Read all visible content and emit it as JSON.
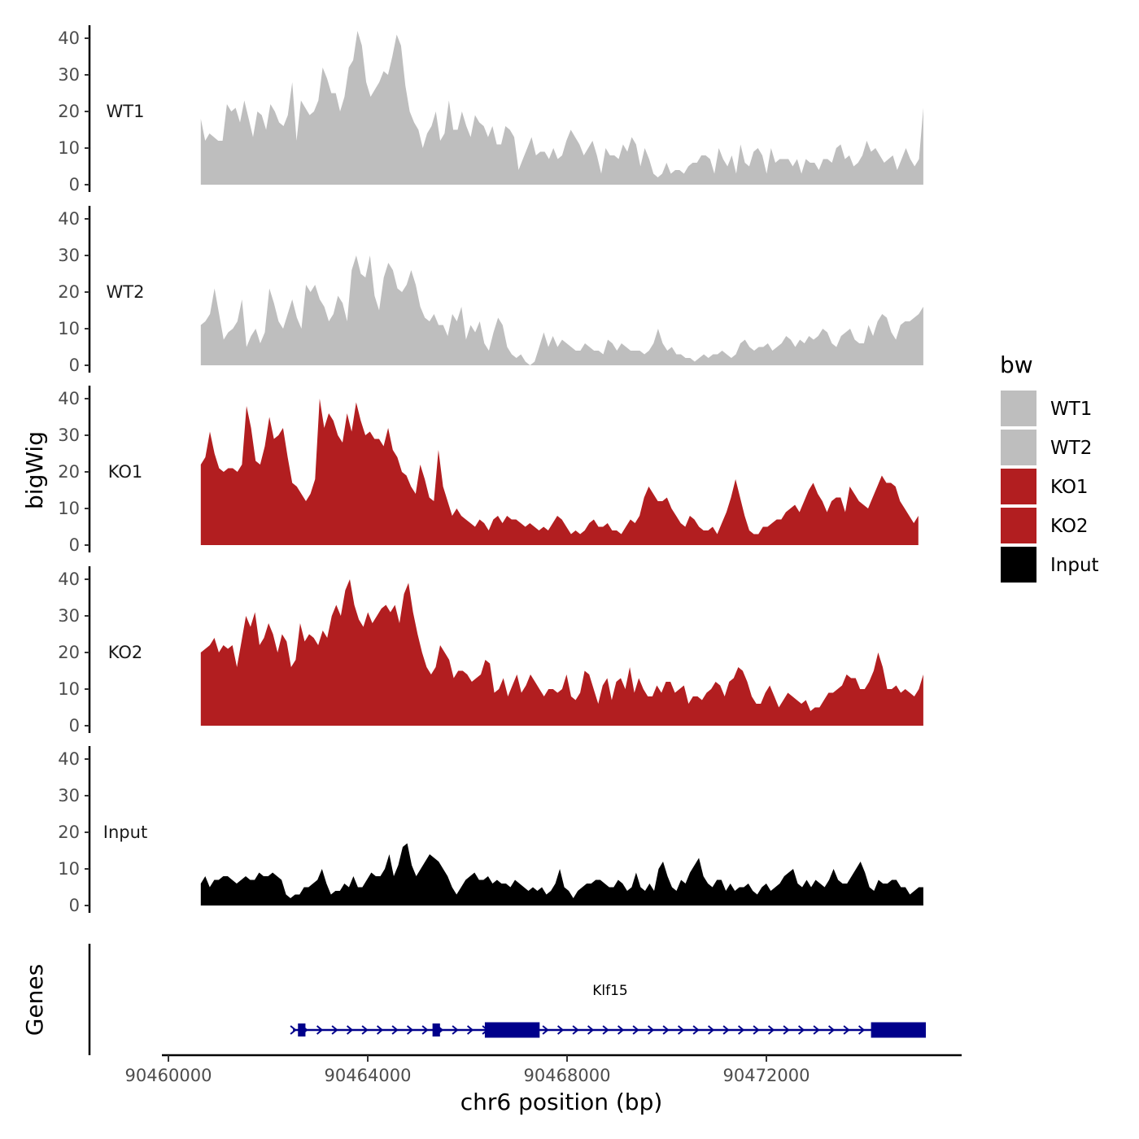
{
  "chart_data": {
    "type": "area",
    "layout": "stacked-facets",
    "ylabel": "bigWig",
    "xlabel": "chr6 position (bp)",
    "ylim": [
      0,
      40
    ],
    "y_ticks": [
      "0",
      "10",
      "20",
      "30",
      "40"
    ],
    "x_range": [
      90459950,
      90475850
    ],
    "x_ticks": [
      90460000,
      90464000,
      90468000,
      90472000
    ],
    "x_tick_labels": [
      "90460000",
      "90464000",
      "90468000",
      "90472000"
    ],
    "colors": {
      "WT": "#bebebe",
      "KO": "#b21e20",
      "Input": "#000000",
      "gene": "#00008b",
      "axis": "#000000"
    },
    "series": [
      {
        "name": "WT1",
        "color": "#bebebe",
        "x_start": 90460650,
        "x_end": 90475150,
        "values": [
          18,
          12,
          14,
          13,
          12,
          12,
          22,
          20,
          21,
          17,
          23,
          18,
          13,
          20,
          19,
          15,
          22,
          20,
          17,
          16,
          19,
          28,
          12,
          23,
          21,
          19,
          20,
          23,
          32,
          29,
          25,
          25,
          20,
          24,
          32,
          34,
          42,
          38,
          28,
          24,
          26,
          28,
          31,
          30,
          35,
          41,
          38,
          27,
          20,
          17,
          15,
          10,
          14,
          16,
          20,
          12,
          14,
          23,
          15,
          15,
          20,
          16,
          13,
          19,
          17,
          16,
          13,
          16,
          11,
          11,
          16,
          15,
          13,
          4,
          7,
          10,
          13,
          8,
          9,
          9,
          7,
          10,
          7,
          8,
          12,
          15,
          13,
          11,
          8,
          10,
          12,
          8,
          3,
          10,
          8,
          8,
          7,
          11,
          9,
          13,
          11,
          5,
          10,
          7,
          3,
          2,
          3,
          6,
          3,
          4,
          4,
          3,
          5,
          6,
          6,
          8,
          8,
          7,
          3,
          10,
          7,
          5,
          8,
          3,
          11,
          6,
          5,
          9,
          10,
          8,
          3,
          10,
          6,
          7,
          7,
          7,
          5,
          7,
          3,
          7,
          6,
          6,
          4,
          7,
          7,
          6,
          10,
          11,
          7,
          8,
          5,
          6,
          8,
          12,
          9,
          10,
          8,
          6,
          7,
          8,
          4,
          7,
          10,
          7,
          5,
          7,
          21
        ]
      },
      {
        "name": "WT2",
        "color": "#bebebe",
        "x_start": 90460650,
        "x_end": 90475150,
        "values": [
          11,
          12,
          14,
          21,
          14,
          7,
          9,
          10,
          12,
          18,
          5,
          8,
          10,
          6,
          9,
          21,
          17,
          12,
          10,
          14,
          18,
          13,
          10,
          22,
          20,
          22,
          18,
          16,
          12,
          14,
          19,
          17,
          12,
          26,
          30,
          25,
          24,
          30,
          19,
          15,
          24,
          28,
          26,
          21,
          20,
          22,
          26,
          22,
          16,
          13,
          12,
          14,
          11,
          11,
          8,
          14,
          12,
          16,
          7,
          11,
          9,
          12,
          6,
          4,
          9,
          13,
          11,
          5,
          3,
          2,
          3,
          1,
          0,
          1,
          5,
          9,
          5,
          8,
          5,
          7,
          6,
          5,
          4,
          4,
          6,
          5,
          4,
          4,
          3,
          7,
          6,
          4,
          6,
          5,
          4,
          4,
          4,
          3,
          4,
          6,
          10,
          6,
          4,
          5,
          3,
          3,
          2,
          2,
          1,
          2,
          3,
          2,
          3,
          3,
          4,
          3,
          2,
          3,
          6,
          7,
          5,
          4,
          5,
          5,
          6,
          4,
          5,
          6,
          8,
          7,
          5,
          7,
          6,
          8,
          7,
          8,
          10,
          9,
          6,
          5,
          8,
          9,
          10,
          7,
          6,
          6,
          11,
          8,
          12,
          14,
          13,
          9,
          7,
          11,
          12,
          12,
          13,
          14,
          16
        ]
      },
      {
        "name": "KO1",
        "color": "#b21e20",
        "x_start": 90460650,
        "x_end": 90475050,
        "values": [
          22,
          24,
          31,
          25,
          21,
          20,
          21,
          21,
          20,
          22,
          38,
          32,
          23,
          22,
          27,
          35,
          29,
          30,
          32,
          24,
          17,
          16,
          14,
          12,
          14,
          18,
          40,
          32,
          36,
          34,
          30,
          28,
          36,
          31,
          39,
          34,
          30,
          31,
          29,
          29,
          27,
          32,
          26,
          24,
          20,
          19,
          16,
          14,
          22,
          18,
          13,
          12,
          26,
          16,
          12,
          8,
          10,
          8,
          7,
          6,
          5,
          7,
          6,
          4,
          7,
          8,
          6,
          8,
          7,
          7,
          6,
          5,
          6,
          5,
          4,
          5,
          4,
          6,
          8,
          7,
          5,
          3,
          4,
          3,
          4,
          6,
          7,
          5,
          5,
          6,
          4,
          4,
          3,
          5,
          7,
          6,
          8,
          13,
          16,
          14,
          12,
          12,
          13,
          10,
          8,
          6,
          5,
          8,
          7,
          5,
          4,
          4,
          5,
          3,
          6,
          9,
          13,
          18,
          13,
          8,
          4,
          3,
          3,
          5,
          5,
          6,
          7,
          7,
          9,
          10,
          11,
          9,
          12,
          15,
          17,
          14,
          12,
          9,
          12,
          13,
          13,
          9,
          16,
          14,
          12,
          11,
          10,
          13,
          16,
          19,
          17,
          17,
          16,
          12,
          10,
          8,
          6,
          8
        ]
      },
      {
        "name": "KO2",
        "color": "#b21e20",
        "x_start": 90460650,
        "x_end": 90475150,
        "values": [
          20,
          21,
          22,
          24,
          20,
          22,
          21,
          22,
          16,
          23,
          30,
          27,
          31,
          22,
          24,
          28,
          25,
          20,
          25,
          23,
          16,
          18,
          28,
          23,
          25,
          24,
          22,
          26,
          24,
          30,
          33,
          30,
          37,
          40,
          33,
          29,
          27,
          31,
          28,
          30,
          32,
          33,
          31,
          33,
          28,
          36,
          39,
          31,
          25,
          20,
          16,
          14,
          16,
          22,
          20,
          18,
          13,
          15,
          15,
          14,
          12,
          13,
          14,
          18,
          17,
          9,
          10,
          13,
          8,
          11,
          14,
          9,
          11,
          14,
          12,
          10,
          8,
          10,
          10,
          9,
          10,
          14,
          8,
          7,
          9,
          15,
          14,
          10,
          6,
          11,
          13,
          7,
          12,
          13,
          10,
          16,
          9,
          13,
          10,
          8,
          8,
          11,
          9,
          12,
          12,
          9,
          10,
          11,
          6,
          8,
          8,
          7,
          9,
          10,
          12,
          11,
          8,
          12,
          13,
          16,
          15,
          12,
          8,
          6,
          6,
          9,
          11,
          8,
          5,
          7,
          9,
          8,
          7,
          6,
          7,
          4,
          5,
          5,
          7,
          9,
          9,
          10,
          11,
          14,
          13,
          13,
          10,
          10,
          12,
          15,
          20,
          16,
          10,
          10,
          11,
          9,
          10,
          9,
          8,
          10,
          14
        ]
      },
      {
        "name": "Input",
        "color": "#000000",
        "x_start": 90460650,
        "x_end": 90475150,
        "values": [
          6,
          8,
          5,
          7,
          7,
          8,
          8,
          7,
          6,
          7,
          8,
          7,
          7,
          9,
          8,
          8,
          9,
          8,
          7,
          3,
          2,
          3,
          3,
          5,
          5,
          6,
          7,
          10,
          6,
          3,
          4,
          4,
          6,
          5,
          8,
          5,
          5,
          7,
          9,
          8,
          8,
          10,
          14,
          8,
          11,
          16,
          17,
          11,
          8,
          10,
          12,
          14,
          13,
          12,
          10,
          8,
          5,
          3,
          5,
          7,
          8,
          9,
          7,
          7,
          8,
          6,
          7,
          6,
          6,
          5,
          7,
          6,
          5,
          4,
          5,
          4,
          5,
          3,
          4,
          6,
          10,
          5,
          4,
          2,
          4,
          5,
          6,
          6,
          7,
          7,
          6,
          5,
          5,
          7,
          6,
          4,
          5,
          9,
          5,
          4,
          6,
          4,
          10,
          12,
          8,
          5,
          4,
          7,
          6,
          9,
          11,
          13,
          8,
          6,
          5,
          7,
          7,
          4,
          6,
          4,
          5,
          5,
          6,
          4,
          3,
          5,
          6,
          4,
          5,
          6,
          8,
          9,
          10,
          6,
          5,
          7,
          5,
          7,
          6,
          5,
          7,
          10,
          7,
          6,
          6,
          8,
          10,
          12,
          9,
          5,
          4,
          7,
          6,
          6,
          7,
          7,
          5,
          5,
          3,
          4,
          5,
          5
        ]
      }
    ],
    "legend": {
      "title": "bw",
      "entries": [
        {
          "label": "WT1",
          "color": "#bebebe"
        },
        {
          "label": "WT2",
          "color": "#bebebe"
        },
        {
          "label": "KO1",
          "color": "#b21e20"
        },
        {
          "label": "KO2",
          "color": "#b21e20"
        },
        {
          "label": "Input",
          "color": "#000000"
        }
      ]
    },
    "genes_track": {
      "ylabel": "Genes",
      "genes": [
        {
          "name": "Klf15",
          "strand": "+",
          "color": "#00008b",
          "start": 90462500,
          "end": 90475200,
          "exons": [
            [
              90462600,
              90462750
            ],
            [
              90465300,
              90465450
            ],
            [
              90466350,
              90467450
            ],
            [
              90474100,
              90475200
            ]
          ]
        }
      ]
    }
  }
}
